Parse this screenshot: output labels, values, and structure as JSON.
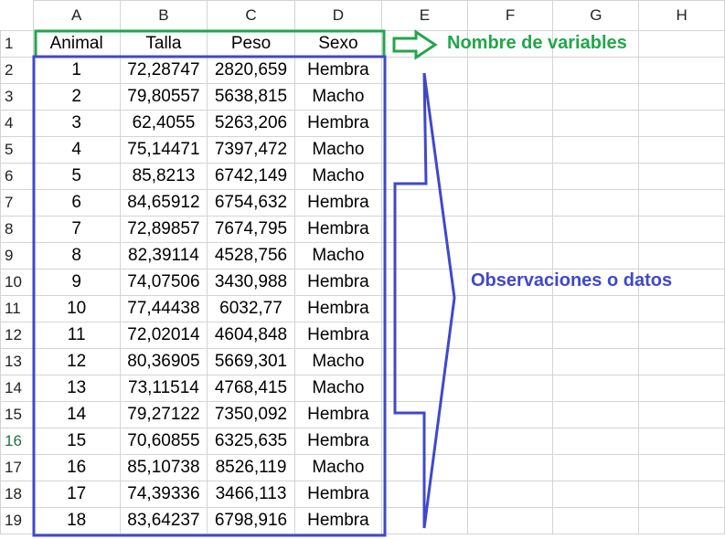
{
  "column_headers": [
    "A",
    "B",
    "C",
    "D",
    "E",
    "F",
    "G",
    "H"
  ],
  "row_numbers": [
    "1",
    "2",
    "3",
    "4",
    "5",
    "6",
    "7",
    "8",
    "9",
    "10",
    "11",
    "12",
    "13",
    "14",
    "15",
    "16",
    "17",
    "18",
    "19"
  ],
  "active_row": "16",
  "variables": [
    "Animal",
    "Talla",
    "Peso",
    "Sexo"
  ],
  "observations": [
    [
      "1",
      "72,28747",
      "2820,659",
      "Hembra"
    ],
    [
      "2",
      "79,80557",
      "5638,815",
      "Macho"
    ],
    [
      "3",
      "62,4055",
      "5263,206",
      "Hembra"
    ],
    [
      "4",
      "75,14471",
      "7397,472",
      "Macho"
    ],
    [
      "5",
      "85,8213",
      "6742,149",
      "Macho"
    ],
    [
      "6",
      "84,65912",
      "6754,632",
      "Hembra"
    ],
    [
      "7",
      "72,89857",
      "7674,795",
      "Hembra"
    ],
    [
      "8",
      "82,39114",
      "4528,756",
      "Macho"
    ],
    [
      "9",
      "74,07506",
      "3430,988",
      "Hembra"
    ],
    [
      "10",
      "77,44438",
      "6032,77",
      "Hembra"
    ],
    [
      "11",
      "72,02014",
      "4604,848",
      "Hembra"
    ],
    [
      "12",
      "80,36905",
      "5669,301",
      "Macho"
    ],
    [
      "13",
      "73,11514",
      "4768,415",
      "Macho"
    ],
    [
      "14",
      "79,27122",
      "7350,092",
      "Hembra"
    ],
    [
      "15",
      "70,60855",
      "6325,635",
      "Hembra"
    ],
    [
      "16",
      "85,10738",
      "8526,119",
      "Macho"
    ],
    [
      "17",
      "74,39336",
      "3466,113",
      "Hembra"
    ],
    [
      "18",
      "83,64237",
      "6798,916",
      "Hembra"
    ]
  ],
  "annotations": {
    "variables_label": "Nombre de variables",
    "observations_label": "Observaciones o datos",
    "variables_color": "#22a64a",
    "observations_color": "#3f48cc"
  }
}
